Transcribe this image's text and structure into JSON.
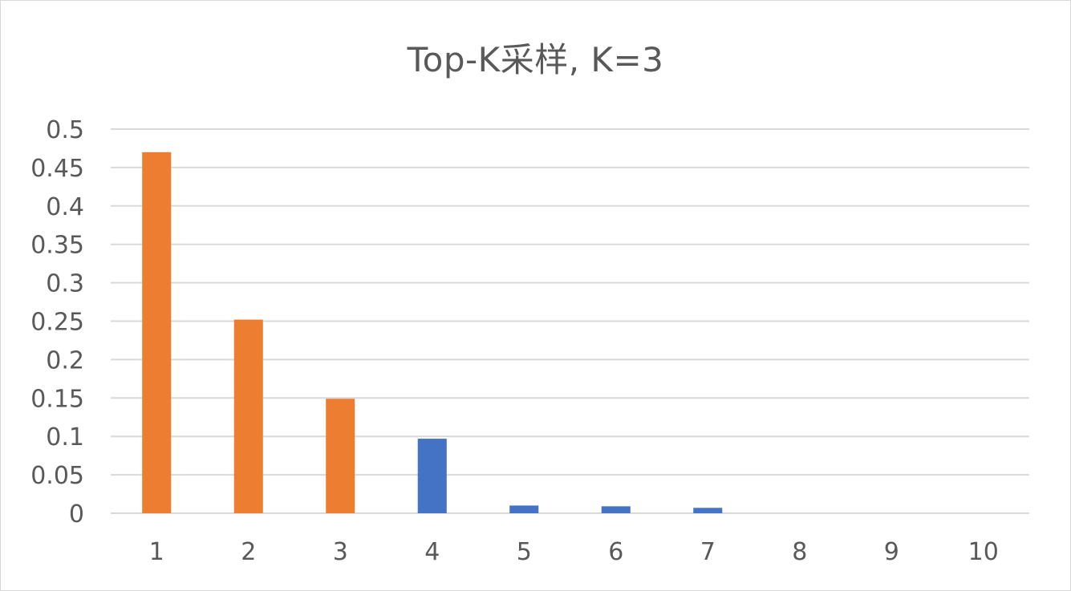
{
  "chart_data": {
    "type": "bar",
    "title": "Top-K采样, K=3",
    "xlabel": "",
    "ylabel": "",
    "categories": [
      "1",
      "2",
      "3",
      "4",
      "5",
      "6",
      "7",
      "8",
      "9",
      "10"
    ],
    "values": [
      0.47,
      0.252,
      0.149,
      0.097,
      0.01,
      0.009,
      0.007,
      0.0,
      0.0,
      0.0
    ],
    "selected": [
      true,
      true,
      true,
      false,
      false,
      false,
      false,
      false,
      false,
      false
    ],
    "ylim": [
      0,
      0.5
    ],
    "yticks": [
      "0",
      "0.05",
      "0.1",
      "0.15",
      "0.2",
      "0.25",
      "0.3",
      "0.35",
      "0.4",
      "0.45",
      "0.5"
    ],
    "colors": {
      "selected": "#ED7D31",
      "unselected": "#4472C4"
    },
    "grid": true,
    "legend": "none"
  }
}
